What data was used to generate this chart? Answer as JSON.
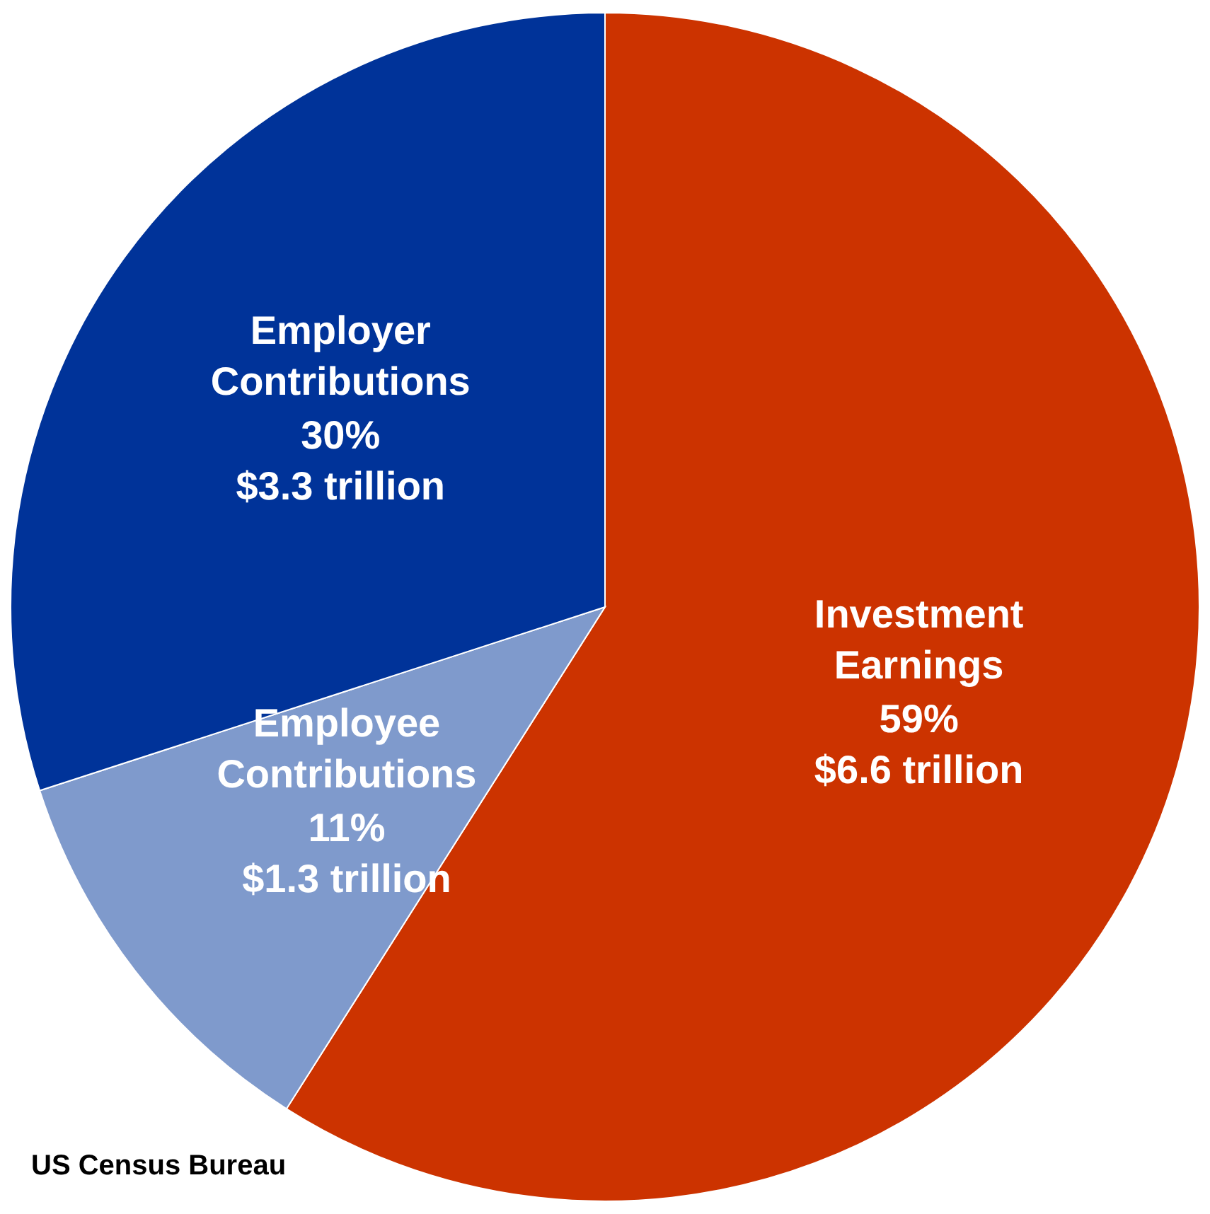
{
  "chart_data": {
    "type": "pie",
    "categories": [
      "Investment Earnings",
      "Employee Contributions",
      "Employer Contributions"
    ],
    "values": [
      59,
      11,
      30
    ],
    "colors": [
      "#cc3300",
      "#7f9acc",
      "#003399"
    ],
    "value_labels": [
      "59%\n$6.6 trillion",
      "11%\n$1.3 trillion",
      "30%\n$3.3 trillion"
    ],
    "annotations": [
      "US Census Bureau"
    ]
  }
}
